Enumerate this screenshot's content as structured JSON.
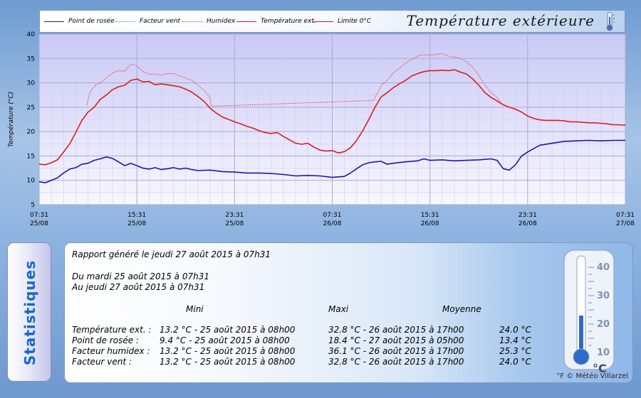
{
  "header": {
    "title": "Température extérieure",
    "legend": [
      {
        "label": "Point de rosée",
        "color": "#1c16b0",
        "dash": "solid"
      },
      {
        "label": "Facteur vent",
        "color": "#1fa5c8",
        "dash": "dotted"
      },
      {
        "label": "Humidex",
        "color": "#e23a3a",
        "dash": "dotted"
      },
      {
        "label": "Température ext.",
        "color": "#dd1c1c",
        "dash": "solid"
      },
      {
        "label": "Limite 0°C",
        "color": "#cc1c1c",
        "dash": "solid"
      }
    ]
  },
  "chart_data": {
    "type": "line",
    "ylabel": "Température (°C)",
    "ylim": [
      5,
      40
    ],
    "yticks": [
      5,
      10,
      15,
      20,
      25,
      30,
      35,
      40
    ],
    "x_range_hours": [
      0,
      48
    ],
    "x_origin": "25/08 07:31",
    "x_ticks": [
      {
        "t": 0,
        "time": "07:31",
        "date": "25/08"
      },
      {
        "t": 8,
        "time": "15:31",
        "date": "25/08"
      },
      {
        "t": 16,
        "time": "23:31",
        "date": "25/08"
      },
      {
        "t": 24,
        "time": "07:31",
        "date": "26/08"
      },
      {
        "t": 32,
        "time": "15:31",
        "date": "26/08"
      },
      {
        "t": 40,
        "time": "23:31",
        "date": "26/08"
      },
      {
        "t": 48,
        "time": "07:31",
        "date": "27/08"
      }
    ],
    "grid": true,
    "series": [
      {
        "name": "Température ext.",
        "color": "#dd1c1c",
        "dash": "solid",
        "points": [
          [
            0,
            13.3
          ],
          [
            0.5,
            13.2
          ],
          [
            1,
            13.6
          ],
          [
            1.5,
            14.2
          ],
          [
            2,
            15.8
          ],
          [
            2.5,
            17.5
          ],
          [
            3,
            19.8
          ],
          [
            3.5,
            22.3
          ],
          [
            4,
            24
          ],
          [
            4.5,
            25
          ],
          [
            5,
            26.6
          ],
          [
            5.5,
            27.5
          ],
          [
            6,
            28.6
          ],
          [
            6.5,
            29.2
          ],
          [
            7,
            29.5
          ],
          [
            7.5,
            30.5
          ],
          [
            8,
            30.8
          ],
          [
            8.5,
            30.2
          ],
          [
            9,
            30.3
          ],
          [
            9.5,
            29.6
          ],
          [
            10,
            29.8
          ],
          [
            10.5,
            29.6
          ],
          [
            11,
            29.4
          ],
          [
            11.5,
            29.2
          ],
          [
            12,
            28.7
          ],
          [
            12.5,
            28.1
          ],
          [
            13,
            27.2
          ],
          [
            13.5,
            26.2
          ],
          [
            14,
            24.8
          ],
          [
            14.5,
            23.8
          ],
          [
            15,
            23
          ],
          [
            15.5,
            22.5
          ],
          [
            16,
            22
          ],
          [
            16.5,
            21.6
          ],
          [
            17,
            21.1
          ],
          [
            17.5,
            20.7
          ],
          [
            18,
            20.2
          ],
          [
            18.5,
            19.8
          ],
          [
            19,
            19.6
          ],
          [
            19.5,
            19.8
          ],
          [
            20,
            19
          ],
          [
            20.5,
            18.3
          ],
          [
            21,
            17.6
          ],
          [
            21.5,
            17.4
          ],
          [
            22,
            17.6
          ],
          [
            22.5,
            16.8
          ],
          [
            23,
            16.2
          ],
          [
            23.5,
            16
          ],
          [
            24,
            16.1
          ],
          [
            24.5,
            15.6
          ],
          [
            25,
            15.9
          ],
          [
            25.5,
            16.7
          ],
          [
            26,
            18.2
          ],
          [
            26.5,
            20.2
          ],
          [
            27,
            22.5
          ],
          [
            27.5,
            25
          ],
          [
            28,
            27.1
          ],
          [
            28.5,
            28
          ],
          [
            29,
            29
          ],
          [
            29.5,
            29.8
          ],
          [
            30,
            30.5
          ],
          [
            30.5,
            31.4
          ],
          [
            31,
            31.9
          ],
          [
            31.5,
            32.3
          ],
          [
            32,
            32.5
          ],
          [
            32.5,
            32.5
          ],
          [
            33,
            32.6
          ],
          [
            33.5,
            32.5
          ],
          [
            34,
            32.7
          ],
          [
            34.5,
            32.2
          ],
          [
            35,
            31.8
          ],
          [
            35.5,
            30.8
          ],
          [
            36,
            29.5
          ],
          [
            36.5,
            28
          ],
          [
            37,
            27
          ],
          [
            37.5,
            26.3
          ],
          [
            38,
            25.5
          ],
          [
            38.5,
            25
          ],
          [
            39,
            24.6
          ],
          [
            39.5,
            24
          ],
          [
            40,
            23.2
          ],
          [
            40.5,
            22.7
          ],
          [
            41,
            22.4
          ],
          [
            41.5,
            22.3
          ],
          [
            42,
            22.3
          ],
          [
            42.5,
            22.3
          ],
          [
            43,
            22.2
          ],
          [
            43.5,
            22
          ],
          [
            44,
            22
          ],
          [
            44.5,
            21.9
          ],
          [
            45,
            21.8
          ],
          [
            45.5,
            21.8
          ],
          [
            46,
            21.7
          ],
          [
            46.5,
            21.6
          ],
          [
            47,
            21.4
          ],
          [
            47.5,
            21.4
          ],
          [
            48,
            21.3
          ]
        ]
      },
      {
        "name": "Humidex",
        "color": "#e23a3a",
        "dash": "dotted",
        "points": [
          [
            3.9,
            25.5
          ],
          [
            4.2,
            28.3
          ],
          [
            4.6,
            29.5
          ],
          [
            5,
            30
          ],
          [
            5.5,
            31
          ],
          [
            6,
            32
          ],
          [
            6.5,
            32.5
          ],
          [
            7,
            32.4
          ],
          [
            7.5,
            33.8
          ],
          [
            8,
            33.5
          ],
          [
            8.5,
            32.3
          ],
          [
            9,
            31.8
          ],
          [
            9.5,
            31.8
          ],
          [
            10,
            31.6
          ],
          [
            10.5,
            31.9
          ],
          [
            11,
            31.9
          ],
          [
            11.5,
            31.4
          ],
          [
            12,
            31
          ],
          [
            12.5,
            30.5
          ],
          [
            13,
            29.5
          ],
          [
            13.5,
            28.5
          ],
          [
            14,
            27
          ],
          [
            14.1,
            25.2
          ],
          [
            27.4,
            26.4
          ],
          [
            28,
            29.5
          ],
          [
            28.5,
            30.5
          ],
          [
            29,
            32
          ],
          [
            29.5,
            33
          ],
          [
            30,
            34
          ],
          [
            30.5,
            34.8
          ],
          [
            31,
            35.5
          ],
          [
            31.5,
            35.8
          ],
          [
            32,
            35.7
          ],
          [
            32.5,
            35.8
          ],
          [
            33,
            36
          ],
          [
            33.5,
            35.5
          ],
          [
            34,
            35.3
          ],
          [
            34.5,
            35
          ],
          [
            35,
            34.3
          ],
          [
            35.5,
            33.2
          ],
          [
            36,
            31.5
          ],
          [
            36.5,
            29.5
          ],
          [
            37,
            28
          ],
          [
            37.5,
            27
          ],
          [
            37.8,
            26.1
          ]
        ]
      },
      {
        "name": "Point de rosée",
        "color": "#1c16b0",
        "dash": "solid",
        "points": [
          [
            0,
            9.7
          ],
          [
            0.5,
            9.5
          ],
          [
            1,
            10
          ],
          [
            1.5,
            10.5
          ],
          [
            2,
            11.5
          ],
          [
            2.5,
            12.3
          ],
          [
            3,
            12.6
          ],
          [
            3.5,
            13.3
          ],
          [
            4,
            13.5
          ],
          [
            4.5,
            14.1
          ],
          [
            5,
            14.4
          ],
          [
            5.5,
            14.8
          ],
          [
            6,
            14.5
          ],
          [
            6.5,
            13.8
          ],
          [
            7,
            13
          ],
          [
            7.5,
            13.5
          ],
          [
            8,
            13
          ],
          [
            8.5,
            12.5
          ],
          [
            9,
            12.3
          ],
          [
            9.5,
            12.6
          ],
          [
            10,
            12.2
          ],
          [
            10.5,
            12.4
          ],
          [
            11,
            12.6
          ],
          [
            11.5,
            12.3
          ],
          [
            12,
            12.5
          ],
          [
            12.5,
            12.2
          ],
          [
            13,
            12
          ],
          [
            14,
            12.1
          ],
          [
            15,
            11.8
          ],
          [
            16,
            11.7
          ],
          [
            17,
            11.5
          ],
          [
            18,
            11.5
          ],
          [
            19,
            11.4
          ],
          [
            20,
            11.2
          ],
          [
            21,
            10.9
          ],
          [
            22,
            11
          ],
          [
            23,
            10.9
          ],
          [
            24,
            10.6
          ],
          [
            25,
            10.8
          ],
          [
            25.5,
            11.5
          ],
          [
            26,
            12.4
          ],
          [
            26.5,
            13.2
          ],
          [
            27,
            13.6
          ],
          [
            27.5,
            13.8
          ],
          [
            28,
            13.9
          ],
          [
            28.5,
            13.3
          ],
          [
            29,
            13.5
          ],
          [
            30,
            13.8
          ],
          [
            31,
            14
          ],
          [
            31.5,
            14.4
          ],
          [
            32,
            14.1
          ],
          [
            33,
            14.2
          ],
          [
            34,
            14
          ],
          [
            35,
            14.1
          ],
          [
            36,
            14.2
          ],
          [
            37,
            14.4
          ],
          [
            37.5,
            14.1
          ],
          [
            38,
            12.4
          ],
          [
            38.5,
            12.1
          ],
          [
            39,
            13.2
          ],
          [
            39.5,
            15
          ],
          [
            40,
            15.8
          ],
          [
            40.5,
            16.5
          ],
          [
            41,
            17.2
          ],
          [
            42,
            17.6
          ],
          [
            43,
            18
          ],
          [
            44,
            18.1
          ],
          [
            45,
            18.2
          ],
          [
            46,
            18.1
          ],
          [
            47,
            18.2
          ],
          [
            48,
            18.2
          ]
        ]
      },
      {
        "name": "Facteur vent",
        "color": "#1fa5c8",
        "dash": "dotted",
        "points": []
      }
    ]
  },
  "stats": {
    "side_title": "Statistiques",
    "generated": "Rapport généré le jeudi 27 août 2015 à 07h31",
    "period_from": "Du mardi 25 août 2015 à 07h31",
    "period_to": "Au jeudi 27 août 2015 à 07h31",
    "col_min": "Mini",
    "col_max": "Maxi",
    "col_avg": "Moyenne",
    "rows": [
      {
        "label": "Température ext. :",
        "min": "13.2 °C - 25 août 2015 à 08h00",
        "max": "32.8 °C - 26 août 2015 à 17h00",
        "avg": "24.0 °C"
      },
      {
        "label": "Point de rosée :",
        "min": "9.4 °C - 25 août 2015 à 08h00",
        "max": "18.4 °C - 27 août 2015 à 05h00",
        "avg": "13.4 °C"
      },
      {
        "label": "Facteur humidex :",
        "min": "13.2 °C - 25 août 2015 à 08h00",
        "max": "36.1 °C - 26 août 2015 à 17h00",
        "avg": "25.3 °C"
      },
      {
        "label": "Facteur vent :",
        "min": "13.2 °C - 25 août 2015 à 08h00",
        "max": "32.8 °C - 26 août 2015 à 17h00",
        "avg": "24.0 °C"
      }
    ],
    "thermo_labels": [
      "40",
      "30",
      "20",
      "10"
    ],
    "thermo_unit": "°C",
    "credit": "°F © Météo Villarzel"
  }
}
